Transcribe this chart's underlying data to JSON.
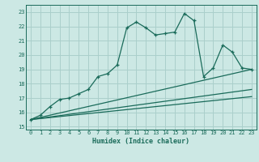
{
  "xlabel": "Humidex (Indice chaleur)",
  "ylabel": "",
  "bg_color": "#cce8e4",
  "grid_color": "#aacfcb",
  "line_color": "#1a6b5a",
  "x_main": [
    0,
    1,
    2,
    3,
    4,
    5,
    6,
    7,
    8,
    9,
    10,
    11,
    12,
    13,
    14,
    15,
    16,
    17,
    18,
    19,
    20,
    21,
    22,
    23
  ],
  "y_main": [
    15.5,
    15.8,
    16.4,
    16.9,
    17.0,
    17.3,
    17.6,
    18.5,
    18.7,
    19.3,
    21.9,
    22.3,
    21.9,
    21.4,
    21.5,
    21.6,
    22.9,
    22.4,
    18.5,
    19.1,
    20.7,
    20.2,
    19.1,
    19.0
  ],
  "ref_lines": [
    {
      "x": [
        0,
        23
      ],
      "y": [
        15.5,
        17.1
      ]
    },
    {
      "x": [
        0,
        23
      ],
      "y": [
        15.5,
        17.6
      ]
    },
    {
      "x": [
        0,
        23
      ],
      "y": [
        15.5,
        19.0
      ]
    }
  ],
  "xlim": [
    -0.5,
    23.5
  ],
  "ylim": [
    14.8,
    23.5
  ],
  "yticks": [
    15,
    16,
    17,
    18,
    19,
    20,
    21,
    22,
    23
  ],
  "xticks": [
    0,
    1,
    2,
    3,
    4,
    5,
    6,
    7,
    8,
    9,
    10,
    11,
    12,
    13,
    14,
    15,
    16,
    17,
    18,
    19,
    20,
    21,
    22,
    23
  ]
}
